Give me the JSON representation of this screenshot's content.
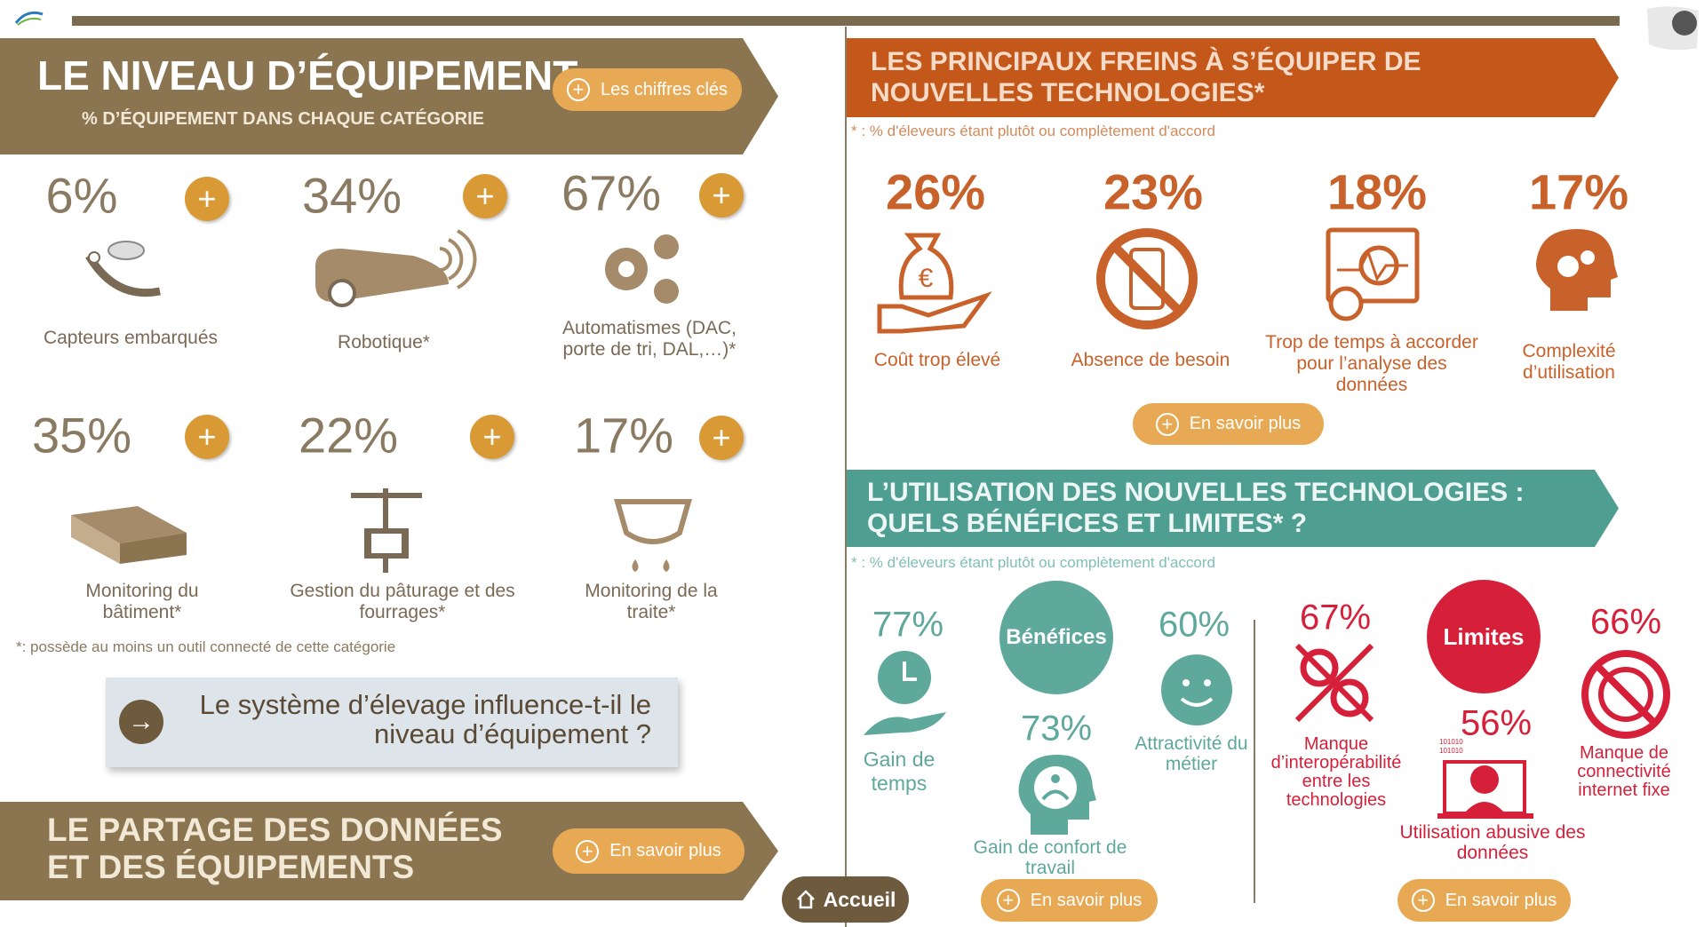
{
  "equipment": {
    "title": "LE NIVEAU D’ÉQUIPEMENT",
    "subtitle": "% D’ÉQUIPEMENT DANS CHAQUE CATÉGORIE",
    "button": "Les chiffres clés",
    "items": [
      {
        "value": "6%",
        "label": "Capteurs embarqués"
      },
      {
        "value": "34%",
        "label": "Robotique*"
      },
      {
        "value": "67%",
        "label": "Automatismes (DAC, porte de tri, DAL,…)*"
      },
      {
        "value": "35%",
        "label": "Monitoring du bâtiment*"
      },
      {
        "value": "22%",
        "label": "Gestion du pâturage et des fourrages*"
      },
      {
        "value": "17%",
        "label": "Monitoring de la traite*"
      }
    ],
    "footnote": "*: possède au moins un outil connecté de cette catégorie",
    "question": "Le système d’élevage influence-t-il le niveau d’équipement ?"
  },
  "sharing": {
    "title": "LE PARTAGE DES DONNÉES ET DES ÉQUIPEMENTS",
    "button": "En savoir plus"
  },
  "nav": {
    "home": "Accueil"
  },
  "barriers": {
    "title": "LES PRINCIPAUX FREINS À S’ÉQUIPER DE NOUVELLES TECHNOLOGIES*",
    "footnote": "* : % d'éleveurs étant plutôt ou complètement d'accord",
    "items": [
      {
        "value": "26%",
        "label": "Coût trop élevé"
      },
      {
        "value": "23%",
        "label": "Absence de besoin"
      },
      {
        "value": "18%",
        "label": "Trop de temps à accorder pour l’analyse des données"
      },
      {
        "value": "17%",
        "label": "Complexité d’utilisation"
      }
    ],
    "button": "En savoir plus"
  },
  "usage": {
    "title": "L’UTILISATION DES NOUVELLES TECHNOLOGIES : QUELS BÉNÉFICES ET LIMITES* ?",
    "footnote": "* : % d'éleveurs étant plutôt ou complètement d'accord",
    "benefits": {
      "label": "Bénéfices",
      "items": [
        {
          "value": "77%",
          "label": "Gain de temps"
        },
        {
          "value": "73%",
          "label": "Gain de confort de travail"
        },
        {
          "value": "60%",
          "label": "Attractivité du métier"
        }
      ],
      "button": "En savoir plus"
    },
    "limits": {
      "label": "Limites",
      "items": [
        {
          "value": "67%",
          "label": "Manque d’interopérabilité entre les technologies"
        },
        {
          "value": "56%",
          "label": "Utilisation abusive des données"
        },
        {
          "value": "66%",
          "label": "Manque de connectivité internet fixe"
        }
      ],
      "button": "En savoir plus"
    }
  }
}
